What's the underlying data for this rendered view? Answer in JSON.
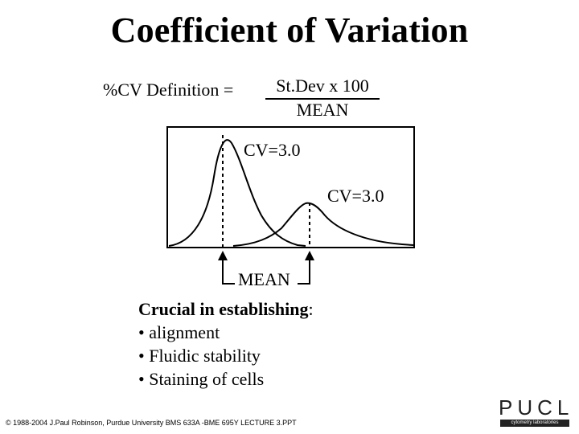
{
  "title": "Coefficient of Variation",
  "definition": {
    "label": "%CV Definition =",
    "numerator": "St.Dev x 100",
    "denominator": "MEAN"
  },
  "diagram": {
    "curve1_label": "CV=3.0",
    "curve2_label": "CV=3.0",
    "mean_label": "MEAN"
  },
  "list": {
    "heading": "Crucial in establishing",
    "heading_suffix": ":",
    "items": [
      "• alignment",
      "• Fluidic stability",
      "• Staining of cells"
    ]
  },
  "footer": "© 1988-2004 J.Paul Robinson, Purdue University  BMS 633A -BME 695Y  LECTURE 3.PPT",
  "logo": {
    "letters": "PUCL",
    "subtitle": "cytometry laboratories"
  }
}
